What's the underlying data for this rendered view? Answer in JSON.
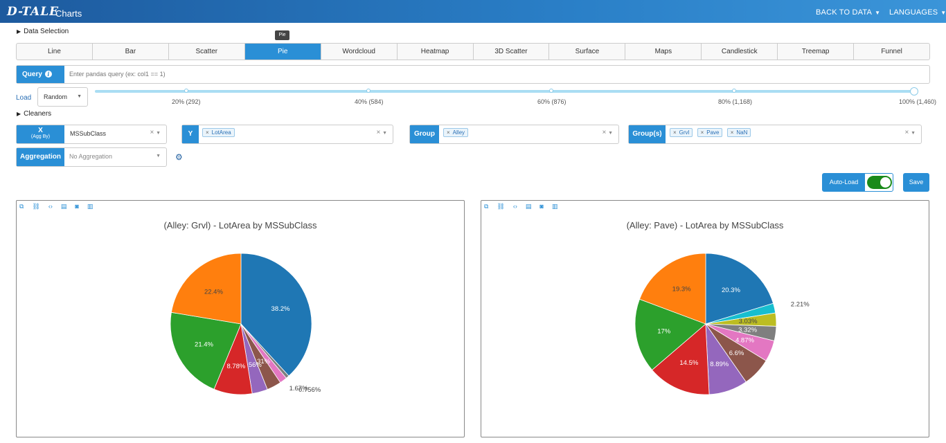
{
  "header": {
    "logo": "D-TALE",
    "title": "Charts",
    "back_label": "BACK TO DATA",
    "languages_label": "LANGUAGES"
  },
  "data_selection_label": "Data Selection",
  "cleaners_label": "Cleaners",
  "tooltip_text": "Pie",
  "tabs": [
    {
      "label": "Line"
    },
    {
      "label": "Bar"
    },
    {
      "label": "Scatter"
    },
    {
      "label": "Pie",
      "active": true
    },
    {
      "label": "Wordcloud"
    },
    {
      "label": "Heatmap"
    },
    {
      "label": "3D Scatter"
    },
    {
      "label": "Surface"
    },
    {
      "label": "Maps"
    },
    {
      "label": "Candlestick"
    },
    {
      "label": "Treemap"
    },
    {
      "label": "Funnel"
    }
  ],
  "query": {
    "label": "Query",
    "placeholder": "Enter pandas query (ex: col1 == 1)"
  },
  "load": {
    "label": "Load",
    "value": "Random"
  },
  "slider": {
    "labels": [
      "20% (292)",
      "40% (584)",
      "60% (876)",
      "80% (1,168)",
      "100% (1,460)"
    ],
    "value_percent": 100
  },
  "fields": {
    "x": {
      "label": "X",
      "sublabel": "(Agg By)",
      "value": "MSSubClass"
    },
    "y": {
      "label": "Y",
      "chips": [
        "LotArea"
      ]
    },
    "group": {
      "label": "Group",
      "chips": [
        "Alley"
      ]
    },
    "groups": {
      "label": "Group(s)",
      "chips": [
        "Grvl",
        "Pave",
        "NaN"
      ]
    },
    "aggregation": {
      "label": "Aggregation",
      "placeholder": "No Aggregation"
    }
  },
  "autoload": {
    "label": "Auto-Load",
    "on": true
  },
  "save_label": "Save",
  "colors": {
    "primary": "#2a8fd6",
    "toggle_on": "#1a8a1a"
  },
  "chart_data": [
    {
      "type": "pie",
      "title": "(Alley: Grvl) - LotArea by MSSubClass",
      "slices": [
        {
          "value": 38.2,
          "label": "38.2%",
          "color": "#1f77b4"
        },
        {
          "value": 0.756,
          "label": "0.756%",
          "color": "#7f7f7f"
        },
        {
          "value": 1.67,
          "label": "1.67%",
          "color": "#e377c2"
        },
        {
          "value": 3.31,
          "label": "3.31%",
          "color": "#8c564b"
        },
        {
          "value": 3.56,
          "label": "3.56%",
          "color": "#9467bd"
        },
        {
          "value": 8.78,
          "label": "8.78%",
          "color": "#d62728"
        },
        {
          "value": 21.4,
          "label": "21.4%",
          "color": "#2ca02c"
        },
        {
          "value": 22.4,
          "label": "22.4%",
          "color": "#ff7f0e"
        }
      ]
    },
    {
      "type": "pie",
      "title": "(Alley: Pave) - LotArea by MSSubClass",
      "slices": [
        {
          "value": 20.3,
          "label": "20.3%",
          "color": "#1f77b4"
        },
        {
          "value": 2.21,
          "label": "2.21%",
          "color": "#17becf"
        },
        {
          "value": 3.03,
          "label": "3.03%",
          "color": "#bcbd22"
        },
        {
          "value": 3.32,
          "label": "3.32%",
          "color": "#7f7f7f"
        },
        {
          "value": 4.87,
          "label": "4.87%",
          "color": "#e377c2"
        },
        {
          "value": 6.6,
          "label": "6.6%",
          "color": "#8c564b"
        },
        {
          "value": 8.89,
          "label": "8.89%",
          "color": "#9467bd"
        },
        {
          "value": 14.5,
          "label": "14.5%",
          "color": "#d62728"
        },
        {
          "value": 17,
          "label": "17%",
          "color": "#2ca02c"
        },
        {
          "value": 19.3,
          "label": "19.3%",
          "color": "#ff7f0e"
        }
      ]
    }
  ]
}
